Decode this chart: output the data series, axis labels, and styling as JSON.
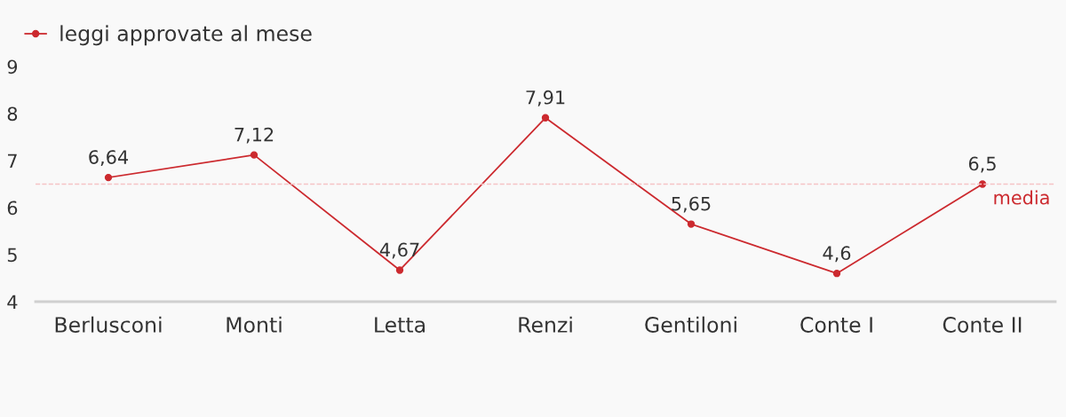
{
  "chart_data": {
    "type": "line",
    "categories": [
      "Berlusconi",
      "Monti",
      "Letta",
      "Renzi",
      "Gentiloni",
      "Conte I",
      "Conte II"
    ],
    "series": [
      {
        "name": "leggi approvate al mese",
        "color": "#cc2a2f",
        "values": [
          6.64,
          7.12,
          4.67,
          7.91,
          5.65,
          4.6,
          6.5
        ],
        "value_labels": [
          "6,64",
          "7,12",
          "4,67",
          "7,91",
          "5,65",
          "4,6",
          "6,5"
        ]
      }
    ],
    "ylim": [
      4,
      9
    ],
    "yticks": [
      4,
      5,
      6,
      7,
      8,
      9
    ],
    "ref_lines": [
      {
        "axis": "y",
        "value": 6.5,
        "label": "media",
        "color": "#f5c4c6",
        "line_style": "dashed"
      }
    ],
    "grid": false,
    "legend": "top left",
    "marker": "circle",
    "line_style": "solid"
  }
}
